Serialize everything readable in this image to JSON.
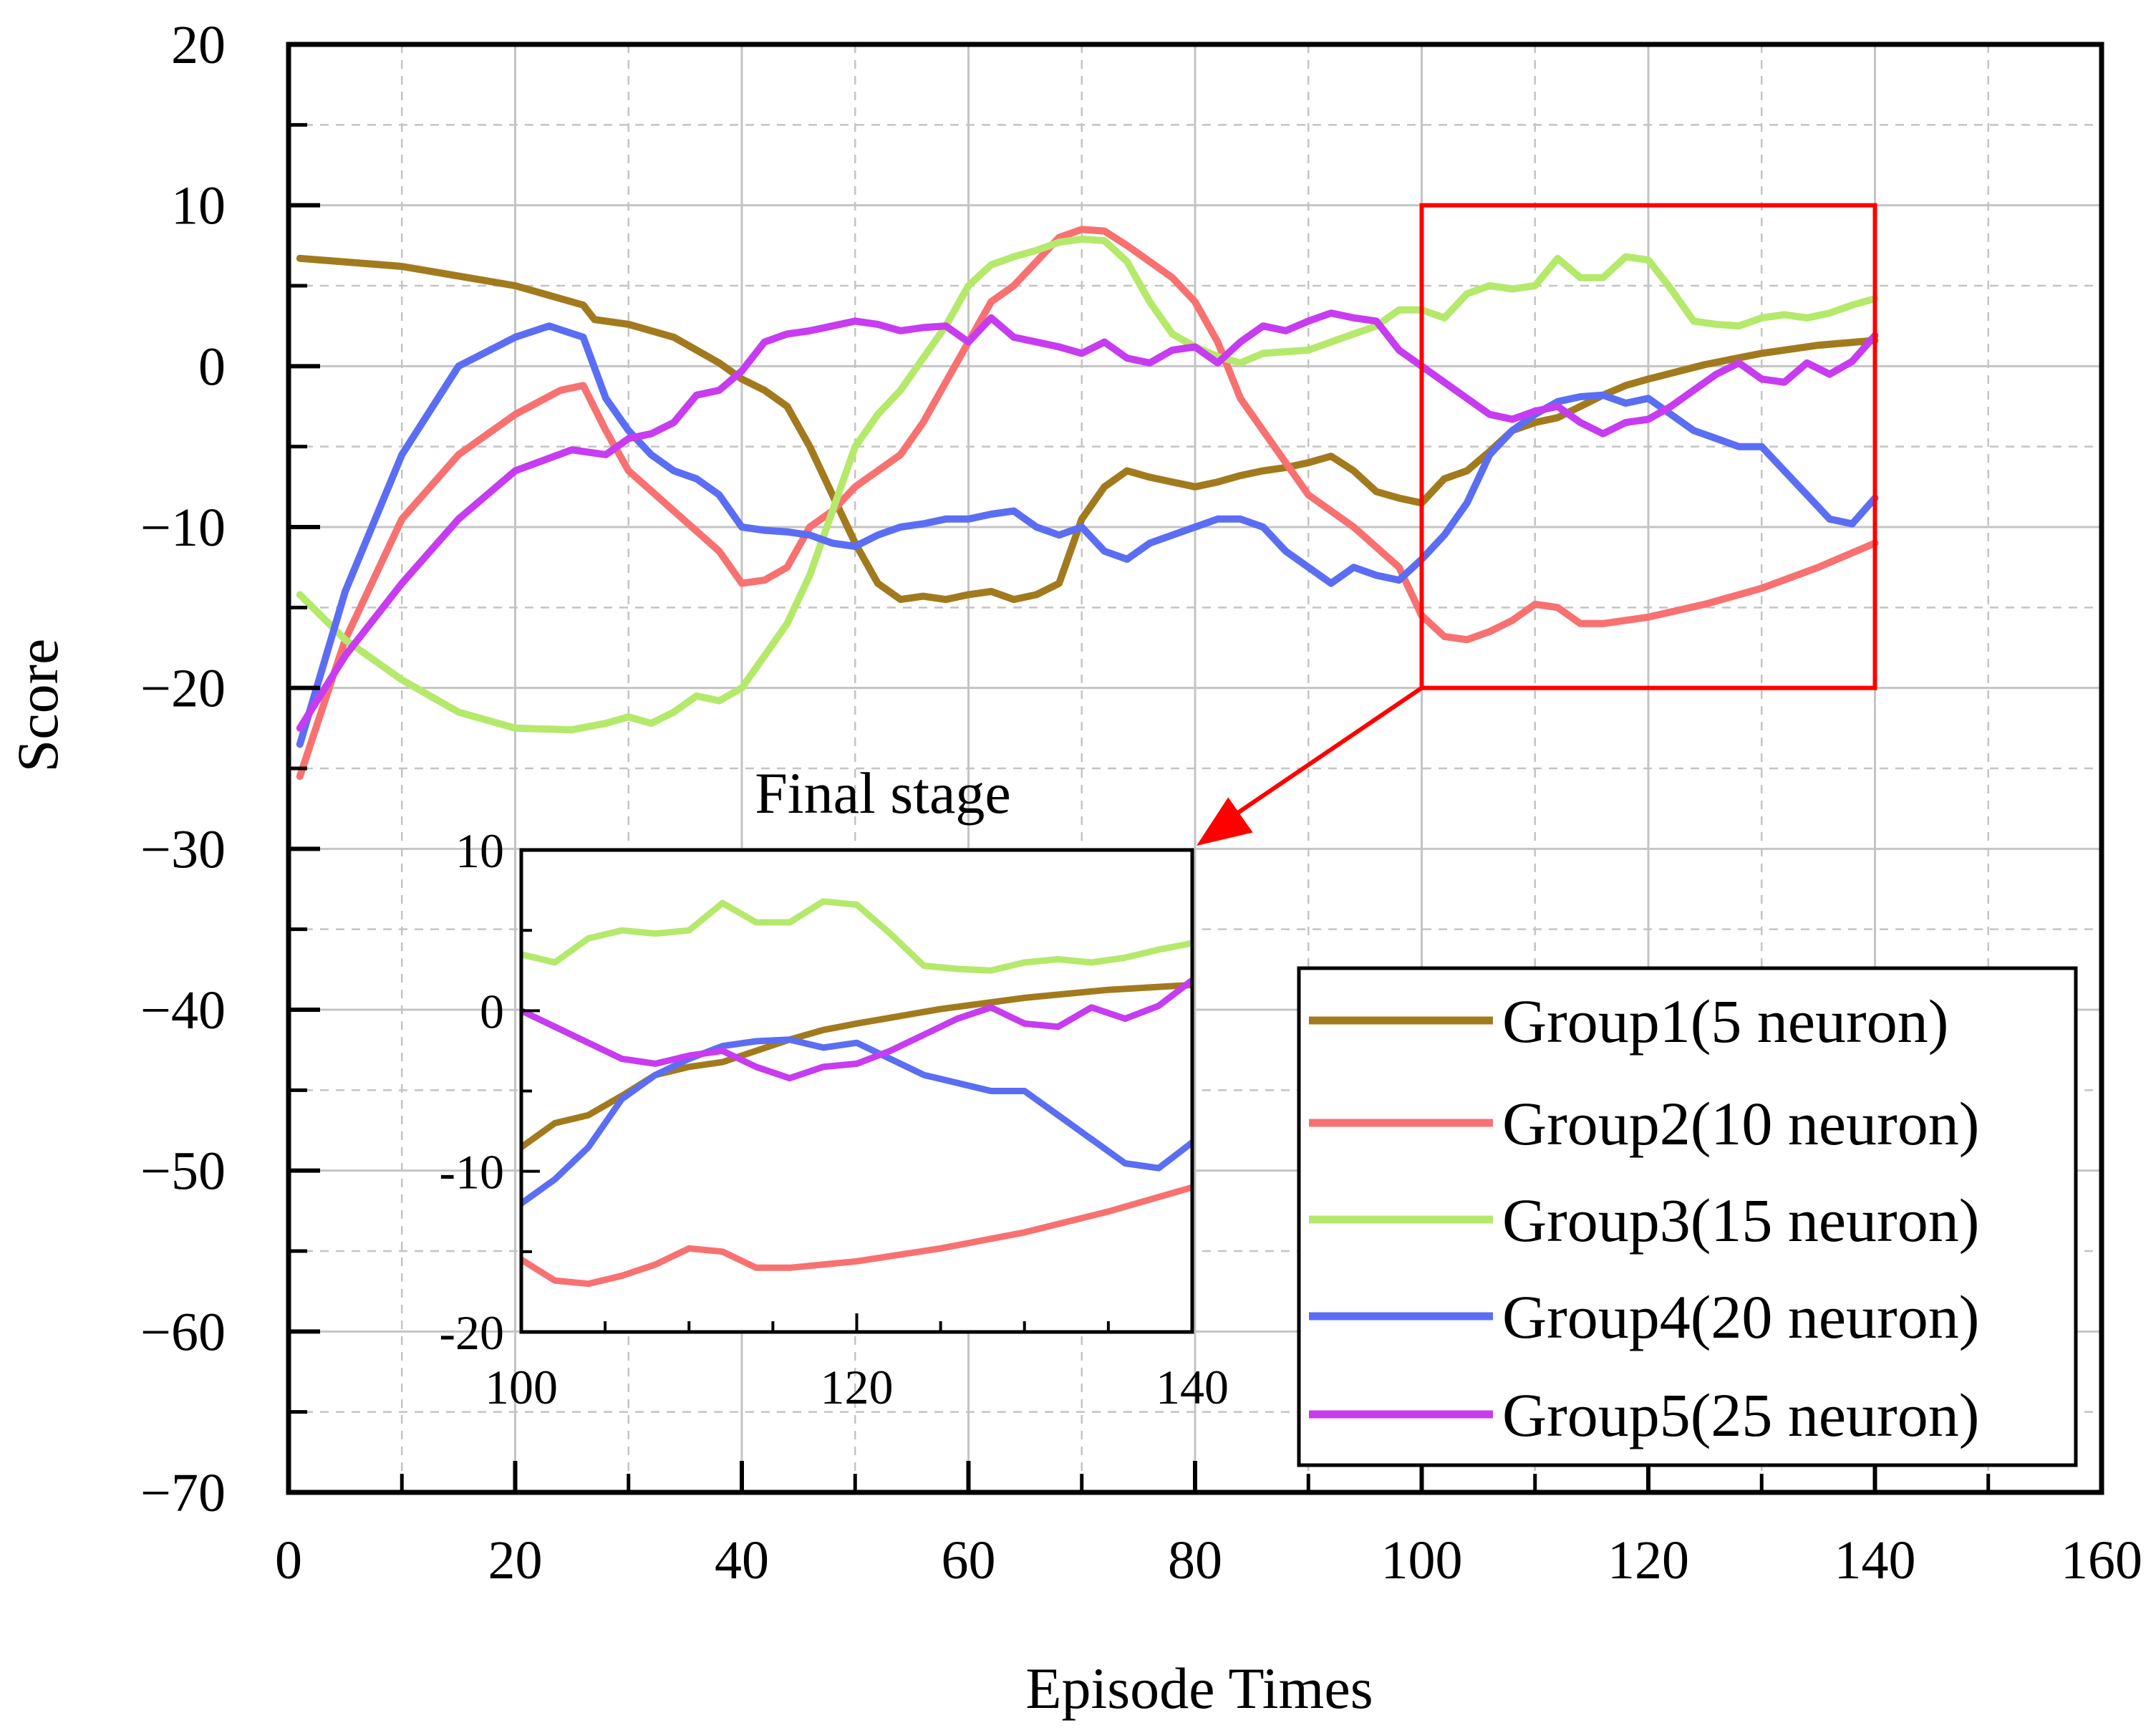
{
  "chart_data": [
    {
      "type": "line",
      "title": "",
      "xlabel": "Episode Times",
      "ylabel": "Score",
      "xlim": [
        0,
        160
      ],
      "ylim": [
        -70,
        20
      ],
      "x_ticks": [
        "0",
        "20",
        "40",
        "60",
        "80",
        "100",
        "120",
        "140",
        "160"
      ],
      "y_ticks": [
        "20",
        "10",
        "0",
        "−10",
        "−20",
        "−30",
        "−40",
        "−50",
        "−60",
        "−70"
      ],
      "legend": {
        "placement": "bottom-right",
        "entries": [
          "Group1(5 neuron)",
          "Group2(10 neuron)",
          "Group3(15 neuron)",
          "Group4(20 neuron)",
          "Group5(25 neuron)"
        ]
      },
      "highlight_box": {
        "x_range": [
          100,
          140
        ],
        "y_range": [
          -20,
          10
        ],
        "color": "#ff0000"
      },
      "series": [
        {
          "name": "Group1(5 neuron)",
          "color": "#a27a1e",
          "x": [
            1,
            10,
            20,
            26,
            27,
            30,
            34,
            38,
            40,
            42,
            44,
            46,
            48,
            50,
            52,
            54,
            56,
            58,
            60,
            62,
            64,
            66,
            68,
            70,
            72,
            74,
            76,
            78,
            80,
            82,
            84,
            86,
            88,
            90,
            92,
            94,
            96,
            98,
            100,
            102,
            104,
            106,
            108,
            110,
            112,
            114,
            116,
            118,
            120,
            125,
            130,
            135,
            140
          ],
          "y": [
            6.7,
            6.2,
            5.0,
            3.8,
            2.9,
            2.6,
            1.8,
            0.2,
            -0.8,
            -1.5,
            -2.5,
            -5.0,
            -8.0,
            -11,
            -13.5,
            -14.5,
            -14.3,
            -14.5,
            -14.2,
            -14.0,
            -14.5,
            -14.2,
            -13.5,
            -9.5,
            -7.5,
            -6.5,
            -6.9,
            -7.2,
            -7.5,
            -7.2,
            -6.8,
            -6.5,
            -6.3,
            -6.0,
            -5.6,
            -6.5,
            -7.8,
            -8.2,
            -8.5,
            -7.0,
            -6.5,
            -5.3,
            -4.0,
            -3.5,
            -3.2,
            -2.5,
            -1.8,
            -1.2,
            -0.8,
            0.1,
            0.8,
            1.3,
            1.6
          ]
        },
        {
          "name": "Group2(10 neuron)",
          "color": "#f87171",
          "x": [
            1,
            5,
            10,
            15,
            20,
            24,
            26,
            28,
            30,
            34,
            38,
            40,
            42,
            44,
            46,
            48,
            50,
            52,
            54,
            56,
            58,
            60,
            62,
            64,
            66,
            68,
            70,
            72,
            74,
            76,
            78,
            80,
            82,
            84,
            86,
            88,
            90,
            94,
            98,
            100,
            102,
            104,
            106,
            108,
            110,
            112,
            114,
            116,
            120,
            125,
            130,
            135,
            140
          ],
          "y": [
            -25.5,
            -17,
            -9.5,
            -5.5,
            -3.0,
            -1.5,
            -1.2,
            -4.0,
            -6.5,
            -9.0,
            -11.5,
            -13.5,
            -13.3,
            -12.5,
            -10.0,
            -9.0,
            -7.5,
            -6.5,
            -5.5,
            -3.5,
            -1.0,
            1.5,
            4.0,
            5.0,
            6.5,
            8.0,
            8.5,
            8.4,
            7.5,
            6.5,
            5.5,
            4.0,
            1.5,
            -2.0,
            -4.0,
            -6.0,
            -8.0,
            -10.0,
            -12.5,
            -15.5,
            -16.8,
            -17.0,
            -16.5,
            -15.8,
            -14.8,
            -15.0,
            -16.0,
            -16.0,
            -15.6,
            -14.8,
            -13.8,
            -12.5,
            -11.0
          ]
        },
        {
          "name": "Group3(15 neuron)",
          "color": "#b5e96b",
          "x": [
            1,
            5,
            10,
            15,
            20,
            25,
            28,
            30,
            32,
            34,
            36,
            38,
            40,
            42,
            44,
            46,
            48,
            50,
            52,
            54,
            56,
            58,
            60,
            62,
            64,
            66,
            68,
            70,
            72,
            74,
            76,
            78,
            80,
            82,
            84,
            86,
            88,
            90,
            92,
            94,
            96,
            98,
            100,
            102,
            104,
            106,
            108,
            110,
            112,
            114,
            116,
            118,
            120,
            122,
            124,
            126,
            128,
            130,
            132,
            134,
            136,
            138,
            140
          ],
          "y": [
            -14.2,
            -17,
            -19.5,
            -21.5,
            -22.5,
            -22.6,
            -22.2,
            -21.8,
            -22.2,
            -21.5,
            -20.5,
            -20.8,
            -20.0,
            -18.0,
            -16.0,
            -13.0,
            -9.0,
            -5.0,
            -3.0,
            -1.5,
            0.5,
            2.5,
            5.0,
            6.3,
            6.8,
            7.2,
            7.7,
            7.9,
            7.8,
            6.5,
            4.0,
            2.0,
            1.2,
            0.6,
            0.2,
            0.8,
            0.9,
            1.0,
            1.5,
            2.0,
            2.5,
            3.5,
            3.5,
            3.0,
            4.5,
            5.0,
            4.8,
            5.0,
            6.7,
            5.5,
            5.5,
            6.8,
            6.6,
            4.8,
            2.8,
            2.6,
            2.5,
            3.0,
            3.2,
            3.0,
            3.3,
            3.8,
            4.2
          ]
        },
        {
          "name": "Group4(20 neuron)",
          "color": "#5b6ef3",
          "x": [
            1,
            5,
            10,
            15,
            20,
            23,
            26,
            28,
            30,
            32,
            34,
            36,
            38,
            40,
            42,
            44,
            46,
            48,
            50,
            52,
            54,
            56,
            58,
            60,
            62,
            64,
            66,
            68,
            70,
            72,
            74,
            76,
            78,
            80,
            82,
            84,
            86,
            88,
            90,
            92,
            94,
            96,
            98,
            100,
            102,
            104,
            106,
            108,
            110,
            112,
            114,
            116,
            118,
            120,
            122,
            124,
            126,
            128,
            130,
            132,
            134,
            136,
            138,
            140
          ],
          "y": [
            -23.5,
            -14,
            -5.5,
            0.0,
            1.8,
            2.5,
            1.8,
            -2.0,
            -4.0,
            -5.5,
            -6.5,
            -7.0,
            -8.0,
            -10.0,
            -10.2,
            -10.3,
            -10.5,
            -11.0,
            -11.2,
            -10.5,
            -10.0,
            -9.8,
            -9.5,
            -9.5,
            -9.2,
            -9.0,
            -10.0,
            -10.5,
            -10.0,
            -11.5,
            -12.0,
            -11.0,
            -10.5,
            -10.0,
            -9.5,
            -9.5,
            -10.0,
            -11.5,
            -12.5,
            -13.5,
            -12.5,
            -13.0,
            -13.3,
            -12.0,
            -10.5,
            -8.5,
            -5.5,
            -4.0,
            -3.0,
            -2.2,
            -1.9,
            -1.8,
            -2.3,
            -2.0,
            -3.0,
            -4.0,
            -4.5,
            -5.0,
            -5.0,
            -6.5,
            -8.0,
            -9.5,
            -9.8,
            -8.2
          ]
        },
        {
          "name": "Group5(25 neuron)",
          "color": "#c73cf0",
          "x": [
            1,
            5,
            10,
            15,
            20,
            25,
            28,
            30,
            32,
            34,
            36,
            38,
            40,
            42,
            44,
            46,
            48,
            50,
            52,
            54,
            56,
            58,
            60,
            62,
            64,
            66,
            68,
            70,
            72,
            74,
            76,
            78,
            80,
            82,
            84,
            86,
            88,
            90,
            92,
            94,
            96,
            98,
            100,
            102,
            104,
            106,
            108,
            110,
            112,
            114,
            116,
            118,
            120,
            122,
            124,
            126,
            128,
            130,
            132,
            134,
            136,
            138,
            140
          ],
          "y": [
            -22.5,
            -18,
            -13.5,
            -9.5,
            -6.5,
            -5.2,
            -5.5,
            -4.5,
            -4.2,
            -3.5,
            -1.8,
            -1.5,
            -0.3,
            1.5,
            2.0,
            2.2,
            2.5,
            2.8,
            2.6,
            2.2,
            2.4,
            2.5,
            1.5,
            3.0,
            1.8,
            1.5,
            1.2,
            0.8,
            1.5,
            0.5,
            0.2,
            1.0,
            1.2,
            0.2,
            1.5,
            2.5,
            2.2,
            2.8,
            3.3,
            3.0,
            2.8,
            1.0,
            0.0,
            -1.0,
            -2.0,
            -3.0,
            -3.3,
            -2.8,
            -2.5,
            -3.5,
            -4.2,
            -3.5,
            -3.3,
            -2.5,
            -1.5,
            -0.5,
            0.2,
            -0.8,
            -1.0,
            0.2,
            -0.5,
            0.3,
            1.9
          ]
        }
      ]
    },
    {
      "type": "line",
      "title": "Final stage",
      "xlabel": "",
      "ylabel": "",
      "xlim": [
        100,
        140
      ],
      "ylim": [
        -20,
        10
      ],
      "x_ticks": [
        "100",
        "120",
        "140"
      ],
      "y_ticks": [
        "10",
        "0",
        "-10",
        "-20"
      ],
      "series_source": "same five series as the main chart, restricted to x in [100, 140]"
    }
  ]
}
